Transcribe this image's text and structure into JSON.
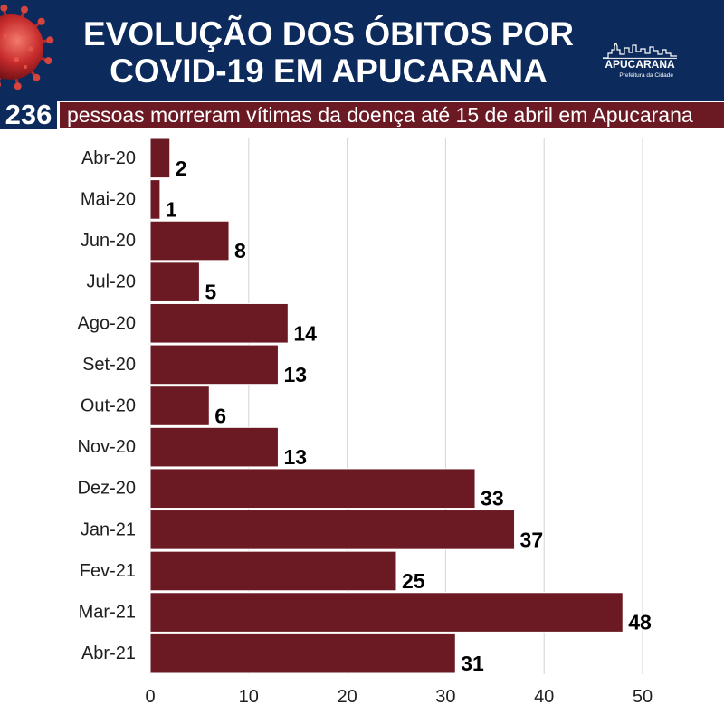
{
  "colors": {
    "header_bg": "#0c2b5c",
    "band_bg": "#6b1a23",
    "bar": "#6b1a23",
    "bar_outline": "#ffffff",
    "grid": "#d3d3d3",
    "value_label": "#000000",
    "text_on_dark": "#ffffff"
  },
  "icons": {
    "header_image": "coronavirus-icon",
    "logo_mark": "city-skyline-icon"
  },
  "logo": {
    "name": "APUCARANA",
    "tagline": "Prefeitura da Cidade"
  },
  "summary": {
    "total": "236",
    "text": "pessoas morreram vítimas da doença até 15 de abril em Apucarana"
  },
  "chart_data": {
    "type": "bar",
    "orientation": "horizontal",
    "title": [
      "EVOLUÇÃO DOS ÓBITOS POR",
      "COVID-19 EM APUCARANA"
    ],
    "categories": [
      "Abr-20",
      "Mai-20",
      "Jun-20",
      "Jul-20",
      "Ago-20",
      "Set-20",
      "Out-20",
      "Nov-20",
      "Dez-20",
      "Jan-21",
      "Fev-21",
      "Mar-21",
      "Abr-21"
    ],
    "values": [
      2,
      1,
      8,
      5,
      14,
      13,
      6,
      13,
      33,
      37,
      25,
      48,
      31
    ],
    "xlim": [
      0,
      50
    ],
    "xticks": [
      0,
      10,
      20,
      30,
      40,
      50
    ],
    "grid": true,
    "data_labels": true
  }
}
